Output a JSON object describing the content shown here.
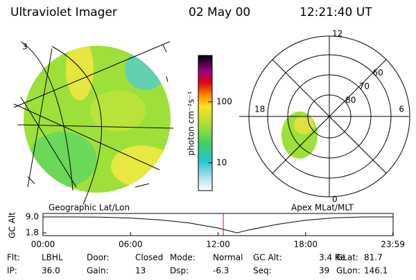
{
  "header": {
    "title": "Ultraviolet Imager",
    "date": "02 May 00",
    "time": "12:21:40 UT"
  },
  "geo_panel": {
    "label": "Geographic Lat/Lon",
    "corner_label": "3"
  },
  "colorbar": {
    "label": "photon cm⁻²s⁻¹",
    "lim": [
      3.5,
      575
    ],
    "log": true,
    "ticks": [
      10,
      100
    ]
  },
  "polar_panel": {
    "label": "Apex MLat/MLT",
    "mlt_labels": [
      "12",
      "18",
      "6",
      "0"
    ],
    "lat_rings": [
      80,
      70,
      60
    ]
  },
  "altitude_plot": {
    "y_label": "GC Alt",
    "ylim": [
      1.8,
      9.0
    ],
    "yticks": [
      {
        "value": 9.0,
        "label": "9.0"
      },
      {
        "value": 1.8,
        "label": "1.8"
      }
    ],
    "xlim": [
      0,
      24
    ],
    "xticks": [
      {
        "value": 0,
        "label": "00:00"
      },
      {
        "value": 6,
        "label": "06:00"
      },
      {
        "value": 12,
        "label": "12:00"
      },
      {
        "value": 18,
        "label": "18:00"
      },
      {
        "value": 23.98,
        "label": "23:59"
      }
    ],
    "x": [
      0,
      2,
      4,
      6,
      8,
      10,
      12,
      13.3,
      14,
      16,
      18,
      20,
      22,
      23.98
    ],
    "values": [
      9.0,
      9.0,
      8.9,
      8.5,
      7.7,
      6.3,
      4.0,
      1.8,
      3.0,
      5.6,
      7.5,
      8.6,
      9.0,
      9.0
    ],
    "marker_hours": 12.36,
    "line_color": "#000000",
    "marker_color": "#ff0000"
  },
  "footer": {
    "rows": [
      [
        [
          "Flt:",
          "LBHL"
        ],
        [
          "Door:",
          "Closed"
        ],
        [
          "Mode:",
          "Normal"
        ],
        [
          "GC Alt:",
          "3.4 Re"
        ],
        [
          "GLat:",
          "81.7"
        ]
      ],
      [
        [
          "IP:",
          "36.0"
        ],
        [
          "Gain:",
          "13"
        ],
        [
          "Dsp:",
          "-6.3"
        ],
        [
          "Seq:",
          "39"
        ],
        [
          "GLon:",
          "146.1"
        ]
      ]
    ]
  }
}
